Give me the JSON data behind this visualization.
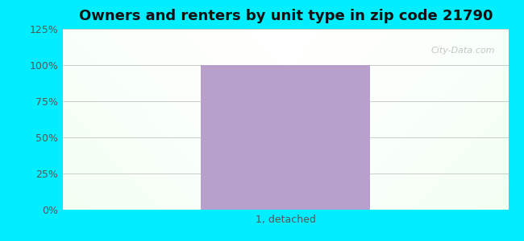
{
  "title": "Owners and renters by unit type in zip code 21790",
  "categories": [
    "1, detached"
  ],
  "values": [
    100
  ],
  "bar_color": "#b8a0cc",
  "ylim": [
    0,
    125
  ],
  "yticks": [
    0,
    25,
    50,
    75,
    100,
    125
  ],
  "ytick_labels": [
    "0%",
    "25%",
    "50%",
    "75%",
    "100%",
    "125%"
  ],
  "title_fontsize": 13,
  "tick_fontsize": 9,
  "bar_width": 0.38,
  "outer_bg_color": "#00eeff",
  "watermark": "City-Data.com",
  "grid_color": "#dddddd",
  "label_color": "#555555"
}
